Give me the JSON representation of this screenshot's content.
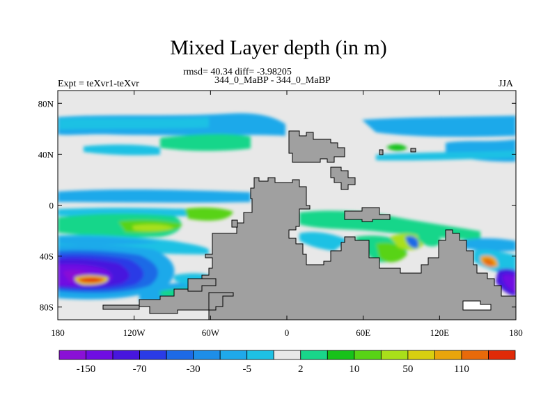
{
  "header": {
    "title": "Mixed Layer depth (in m)",
    "stats": "rmsd= 40.34 diff= -3.98205",
    "case": "344_0_MaBP - 344_0_MaBP",
    "expt": "Expt = teXvr1-teXvr",
    "season": "JJA"
  },
  "axes": {
    "y_ticks": [
      {
        "value": 80,
        "label": "80N"
      },
      {
        "value": 40,
        "label": "40N"
      },
      {
        "value": 0,
        "label": "0"
      },
      {
        "value": -40,
        "label": "40S"
      },
      {
        "value": -80,
        "label": "80S"
      }
    ],
    "x_ticks": [
      {
        "value": -180,
        "label": "180"
      },
      {
        "value": -120,
        "label": "120W"
      },
      {
        "value": -60,
        "label": "60W"
      },
      {
        "value": 0,
        "label": "0"
      },
      {
        "value": 60,
        "label": "60E"
      },
      {
        "value": 120,
        "label": "120E"
      },
      {
        "value": 180,
        "label": "180"
      }
    ]
  },
  "colorbar": {
    "colors": [
      "#8a11d6",
      "#6f0ee2",
      "#4716de",
      "#2a3be6",
      "#1d6ae6",
      "#1e8ee8",
      "#1fa9ea",
      "#1ec1e4",
      "#e8e8e8",
      "#19d68a",
      "#17c21a",
      "#58d316",
      "#a9e01a",
      "#d8cf10",
      "#e9a50c",
      "#e86a0a",
      "#e02a08"
    ],
    "labels": [
      {
        "boundary": 1,
        "text": "-150"
      },
      {
        "boundary": 3,
        "text": "-70"
      },
      {
        "boundary": 5,
        "text": "-30"
      },
      {
        "boundary": 7,
        "text": "-5"
      },
      {
        "boundary": 9,
        "text": "2"
      },
      {
        "boundary": 11,
        "text": "10"
      },
      {
        "boundary": 13,
        "text": "50"
      },
      {
        "boundary": 15,
        "text": "110"
      }
    ]
  },
  "map_colors": {
    "land": "#a0a0a0",
    "background": "#e8e8e8"
  }
}
